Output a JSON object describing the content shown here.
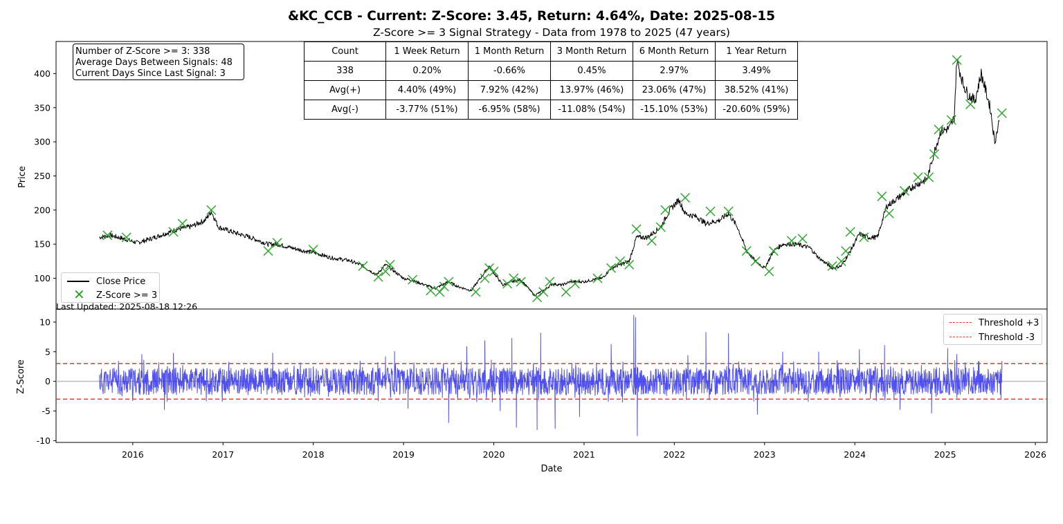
{
  "title": "&KC_CCB - Current: Z-Score: 3.45, Return: 4.64%, Date: 2025-08-15",
  "subtitle": "Z-Score >= 3 Signal Strategy - Data from 1978 to 2025 (47 years)",
  "last_updated": "Last Updated: 2025-08-18 12:26",
  "info_box": {
    "line1": "Number of Z-Score >= 3: 338",
    "line2": "Average Days Between Signals: 48",
    "line3": "Current Days Since Last Signal: 3"
  },
  "stats_table": {
    "header": [
      "Count",
      "1 Week Return",
      "1 Month Return",
      "3 Month Return",
      "6 Month Return",
      "1 Year Return"
    ],
    "rows": [
      [
        "338",
        "0.20%",
        "-0.66%",
        "0.45%",
        "2.97%",
        "3.49%"
      ],
      [
        "Avg(+)",
        "4.40% (49%)",
        "7.92% (42%)",
        "13.97% (46%)",
        "23.06% (47%)",
        "38.52% (41%)"
      ],
      [
        "Avg(-)",
        "-3.77% (51%)",
        "-6.95% (58%)",
        "-11.08% (54%)",
        "-15.10% (53%)",
        "-20.60% (59%)"
      ]
    ]
  },
  "colors": {
    "price_line": "#000000",
    "signal_marker": "#2ca02c",
    "zscore_line": "#3333ee",
    "threshold": "#ee3333",
    "zero_line": "#bbbbbb"
  },
  "chart_data": [
    {
      "type": "line",
      "ylabel": "Price",
      "xlim": [
        2015.15,
        2026.13
      ],
      "ylim": [
        55,
        447
      ],
      "yticks": [
        100,
        150,
        200,
        250,
        300,
        350,
        400
      ],
      "legend_position": "lower-left",
      "series": [
        {
          "name": "Close Price",
          "x": [
            2015.63,
            2015.75,
            2015.9,
            2016.05,
            2016.2,
            2016.35,
            2016.5,
            2016.65,
            2016.8,
            2016.87,
            2016.95,
            2017.1,
            2017.3,
            2017.5,
            2017.6,
            2017.75,
            2017.9,
            2018.0,
            2018.2,
            2018.4,
            2018.55,
            2018.7,
            2018.8,
            2018.9,
            2019.0,
            2019.1,
            2019.2,
            2019.35,
            2019.5,
            2019.6,
            2019.75,
            2019.85,
            2019.95,
            2020.0,
            2020.1,
            2020.2,
            2020.3,
            2020.45,
            2020.55,
            2020.65,
            2020.75,
            2020.85,
            2021.0,
            2021.1,
            2021.2,
            2021.3,
            2021.5,
            2021.58,
            2021.7,
            2021.85,
            2021.95,
            2022.05,
            2022.12,
            2022.25,
            2022.35,
            2022.5,
            2022.6,
            2022.7,
            2022.8,
            2022.9,
            2023.0,
            2023.1,
            2023.2,
            2023.35,
            2023.5,
            2023.6,
            2023.75,
            2023.85,
            2023.95,
            2024.05,
            2024.15,
            2024.25,
            2024.35,
            2024.5,
            2024.65,
            2024.8,
            2024.88,
            2024.95,
            2025.05,
            2025.1,
            2025.13,
            2025.2,
            2025.25,
            2025.33,
            2025.4,
            2025.5,
            2025.55,
            2025.6
          ],
          "y": [
            160,
            163,
            158,
            152,
            158,
            165,
            172,
            176,
            185,
            198,
            175,
            168,
            160,
            150,
            150,
            145,
            140,
            138,
            130,
            126,
            118,
            105,
            120,
            110,
            100,
            97,
            92,
            85,
            95,
            88,
            82,
            100,
            118,
            108,
            90,
            95,
            98,
            75,
            82,
            92,
            90,
            95,
            95,
            98,
            100,
            115,
            125,
            160,
            160,
            175,
            200,
            215,
            195,
            190,
            180,
            185,
            195,
            175,
            140,
            125,
            115,
            140,
            150,
            150,
            145,
            130,
            115,
            118,
            140,
            165,
            160,
            160,
            205,
            220,
            235,
            245,
            285,
            315,
            320,
            335,
            420,
            385,
            370,
            360,
            400,
            350,
            300,
            330
          ]
        }
      ]
    },
    {
      "type": "scatter",
      "series": [
        {
          "name": "Z-Score >= 3",
          "x": [
            2015.72,
            2015.93,
            2016.45,
            2016.55,
            2016.87,
            2017.5,
            2017.6,
            2018.0,
            2018.55,
            2018.72,
            2018.8,
            2018.85,
            2019.1,
            2019.3,
            2019.4,
            2019.45,
            2019.5,
            2019.8,
            2019.9,
            2019.95,
            2020.0,
            2020.15,
            2020.22,
            2020.3,
            2020.48,
            2020.55,
            2020.62,
            2020.8,
            2020.9,
            2021.15,
            2021.3,
            2021.4,
            2021.5,
            2021.58,
            2021.75,
            2021.85,
            2021.9,
            2022.12,
            2022.4,
            2022.6,
            2022.8,
            2022.9,
            2023.05,
            2023.1,
            2023.3,
            2023.42,
            2023.75,
            2023.85,
            2023.9,
            2023.95,
            2024.1,
            2024.3,
            2024.38,
            2024.55,
            2024.7,
            2024.82,
            2024.88,
            2024.93,
            2025.07,
            2025.13,
            2025.28,
            2025.63
          ],
          "y": [
            163,
            160,
            168,
            180,
            200,
            140,
            152,
            142,
            118,
            102,
            110,
            120,
            98,
            82,
            80,
            88,
            95,
            80,
            100,
            115,
            110,
            92,
            100,
            95,
            72,
            80,
            95,
            80,
            92,
            100,
            115,
            125,
            120,
            172,
            155,
            175,
            200,
            218,
            198,
            198,
            140,
            125,
            110,
            140,
            155,
            158,
            118,
            125,
            140,
            168,
            160,
            220,
            195,
            228,
            248,
            248,
            282,
            318,
            332,
            420,
            355,
            342
          ]
        }
      ]
    },
    {
      "type": "line",
      "xlabel": "Date",
      "ylabel": "Z-Score",
      "xlim": [
        2015.15,
        2026.13
      ],
      "ylim": [
        -10.3,
        12.2
      ],
      "yticks": [
        -10,
        -5,
        0,
        5,
        10
      ],
      "xticks": [
        "2016",
        "2017",
        "2018",
        "2019",
        "2020",
        "2021",
        "2022",
        "2023",
        "2024",
        "2025",
        "2026"
      ],
      "legend_position": "top-right",
      "start": 2015.63,
      "end": 2025.63,
      "spikes": [
        [
          2016.1,
          4.6
        ],
        [
          2016.35,
          -4.8
        ],
        [
          2016.45,
          4.8
        ],
        [
          2017.55,
          4.8
        ],
        [
          2018.8,
          4.2
        ],
        [
          2018.9,
          5.1
        ],
        [
          2019.05,
          -4.6
        ],
        [
          2019.5,
          -7.0
        ],
        [
          2019.7,
          5.9
        ],
        [
          2019.9,
          6.9
        ],
        [
          2020.07,
          -5.0
        ],
        [
          2020.2,
          7.3
        ],
        [
          2020.25,
          -7.8
        ],
        [
          2020.48,
          -8.2
        ],
        [
          2020.52,
          8.2
        ],
        [
          2020.68,
          -8.0
        ],
        [
          2020.95,
          -6.0
        ],
        [
          2021.3,
          6.3
        ],
        [
          2021.55,
          11.2
        ],
        [
          2021.57,
          10.8
        ],
        [
          2021.59,
          -9.2
        ],
        [
          2022.15,
          4.4
        ],
        [
          2022.35,
          8.3
        ],
        [
          2022.6,
          8.1
        ],
        [
          2022.92,
          -5.6
        ],
        [
          2023.2,
          5.0
        ],
        [
          2023.6,
          5.0
        ],
        [
          2024.05,
          5.4
        ],
        [
          2024.33,
          6.1
        ],
        [
          2024.5,
          -4.8
        ],
        [
          2024.85,
          -5.4
        ],
        [
          2025.03,
          5.6
        ],
        [
          2025.13,
          4.6
        ],
        [
          2025.63,
          3.45
        ]
      ],
      "series": [
        {
          "name": "Z-Score",
          "y": []
        },
        {
          "name": "Threshold +3",
          "y": [
            3,
            3
          ]
        },
        {
          "name": "Threshold -3",
          "y": [
            -3,
            -3
          ]
        }
      ]
    }
  ]
}
